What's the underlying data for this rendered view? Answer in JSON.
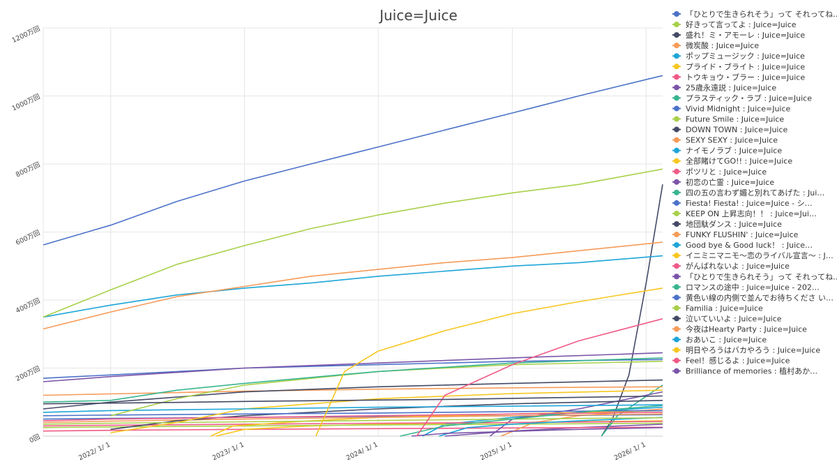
{
  "chart_data": {
    "type": "line",
    "title": "Juice=Juice",
    "xlabel": "",
    "ylabel": "",
    "x_tick_labels": [
      "2022/ 1/ 1",
      "2023/ 1/ 1",
      "2024/ 1/ 1",
      "2025/ 1/ 1",
      "2026/ 1/ 1"
    ],
    "y_tick_labels": [
      "0回",
      "200万回",
      "400万回",
      "600万回",
      "800万回",
      "1000万回",
      "1200万回"
    ],
    "ylim": [
      0,
      1200
    ],
    "y_unit": "万回",
    "xlim": [
      "2021-07-01",
      "2026-02-15"
    ],
    "grid": true,
    "legend_position": "right",
    "series": [
      {
        "name": "「ひとりで生きられそう」って それってね…",
        "color": "#4c72c9",
        "x": [
          "2021-07-01",
          "2022-01-01",
          "2022-07-01",
          "2023-01-01",
          "2023-07-01",
          "2024-01-01",
          "2024-07-01",
          "2025-01-01",
          "2025-07-01",
          "2026-02-15"
        ],
        "y": [
          562,
          620,
          690,
          750,
          800,
          850,
          900,
          950,
          1000,
          1060
        ]
      },
      {
        "name": "好きって言ってよ : Juice=Juice",
        "color": "#a8d04a",
        "x": [
          "2021-07-01",
          "2022-01-01",
          "2022-07-01",
          "2023-01-01",
          "2023-07-01",
          "2024-01-01",
          "2024-07-01",
          "2025-01-01",
          "2025-07-01",
          "2026-02-15"
        ],
        "y": [
          350,
          430,
          505,
          560,
          610,
          650,
          685,
          715,
          740,
          785
        ]
      },
      {
        "name": "盛れ！ミ・アモーレ : Juice=Juice",
        "color": "#444a66",
        "x": [
          "2021-07-01",
          "2022-01-01",
          "2022-07-01",
          "2023-01-01",
          "2023-07-01",
          "2024-01-01",
          "2024-07-01",
          "2025-01-01",
          "2025-07-01",
          "2026-02-15"
        ],
        "y": [
          95,
          97,
          99,
          102,
          104,
          106,
          108,
          111,
          114,
          118
        ]
      },
      {
        "name": "微炭酸 : Juice=Juice",
        "color": "#f59b58",
        "x": [
          "2021-07-01",
          "2022-01-01",
          "2022-07-01",
          "2023-01-01",
          "2023-07-01",
          "2024-01-01",
          "2024-07-01",
          "2025-01-01",
          "2025-07-01",
          "2026-02-15"
        ],
        "y": [
          315,
          365,
          410,
          440,
          470,
          490,
          510,
          525,
          545,
          570
        ]
      },
      {
        "name": "ポップミュージック : Juice=Juice",
        "color": "#1ea5d8",
        "x": [
          "2021-07-01",
          "2022-01-01",
          "2022-07-01",
          "2023-01-01",
          "2023-07-01",
          "2024-01-01",
          "2024-07-01",
          "2025-01-01",
          "2025-07-01",
          "2026-02-15"
        ],
        "y": [
          350,
          385,
          415,
          435,
          450,
          470,
          485,
          500,
          510,
          530
        ]
      },
      {
        "name": "プライド・ブライト : Juice=Juice",
        "color": "#f7c720",
        "x": [
          "2023-07-15",
          "2023-10-01",
          "2024-01-01",
          "2024-07-01",
          "2025-01-01",
          "2025-07-01",
          "2026-02-15"
        ],
        "y": [
          0,
          190,
          250,
          310,
          360,
          395,
          435
        ]
      },
      {
        "name": "トウキョウ・ブラー : Juice=Juice",
        "color": "#ef5b87",
        "x": [
          "2024-04-15",
          "2024-07-01",
          "2025-01-01",
          "2025-07-01",
          "2026-02-15"
        ],
        "y": [
          0,
          120,
          210,
          280,
          345
        ]
      },
      {
        "name": "25歳永遠説 : Juice=Juice",
        "color": "#7a55a8",
        "x": [
          "2021-07-01",
          "2022-01-01",
          "2023-01-01",
          "2024-01-01",
          "2025-01-01",
          "2026-02-15"
        ],
        "y": [
          160,
          175,
          200,
          215,
          230,
          245
        ]
      },
      {
        "name": "プラスティック・ラブ : Juice=Juice",
        "color": "#38b58f",
        "x": [
          "2021-07-01",
          "2022-01-01",
          "2022-07-01",
          "2023-01-01",
          "2024-01-01",
          "2025-01-01",
          "2026-02-15"
        ],
        "y": [
          100,
          105,
          135,
          155,
          190,
          215,
          230
        ]
      },
      {
        "name": "Vivid Midnight : Juice=Juice",
        "color": "#4c72c9",
        "x": [
          "2021-07-01",
          "2022-01-01",
          "2023-01-01",
          "2024-01-01",
          "2025-01-01",
          "2026-02-15"
        ],
        "y": [
          170,
          180,
          200,
          210,
          220,
          225
        ]
      },
      {
        "name": "Future Smile : Juice=Juice",
        "color": "#a8d04a",
        "x": [
          "2022-01-01",
          "2022-07-01",
          "2023-01-01",
          "2024-01-01",
          "2025-01-01",
          "2026-02-15"
        ],
        "y": [
          60,
          110,
          150,
          190,
          210,
          220
        ]
      },
      {
        "name": "DOWN TOWN : Juice=Juice",
        "color": "#444a66",
        "x": [
          "2021-07-01",
          "2022-01-01",
          "2023-01-01",
          "2024-01-01",
          "2025-01-01",
          "2026-02-15"
        ],
        "y": [
          80,
          100,
          130,
          145,
          155,
          165
        ]
      },
      {
        "name": "SEXY SEXY : Juice=Juice",
        "color": "#f59b58",
        "x": [
          "2021-07-01",
          "2022-01-01",
          "2023-01-01",
          "2024-01-01",
          "2025-01-01",
          "2026-02-15"
        ],
        "y": [
          120,
          124,
          132,
          138,
          142,
          145
        ]
      },
      {
        "name": "ナイモノラブ : Juice=Juice",
        "color": "#1ea5d8",
        "x": [
          "2021-07-01",
          "2022-01-01",
          "2023-01-01",
          "2024-01-01",
          "2025-01-01",
          "2026-02-15"
        ],
        "y": [
          70,
          75,
          80,
          85,
          88,
          92
        ]
      },
      {
        "name": "全部賭けてGO!! : Juice=Juice",
        "color": "#f7c720",
        "x": [
          "2022-01-01",
          "2022-07-01",
          "2023-01-01",
          "2024-01-01",
          "2025-01-01",
          "2026-02-15"
        ],
        "y": [
          10,
          40,
          80,
          110,
          125,
          135
        ]
      },
      {
        "name": "ポツリと : Juice=Juice",
        "color": "#ef5b87",
        "x": [
          "2021-07-01",
          "2022-01-01",
          "2023-01-01",
          "2024-01-01",
          "2025-01-01",
          "2026-02-15"
        ],
        "y": [
          45,
          50,
          55,
          60,
          65,
          70
        ]
      },
      {
        "name": "初恋の亡霊 : Juice=Juice",
        "color": "#7a55a8",
        "x": [
          "2024-04-01",
          "2024-07-01",
          "2025-01-01",
          "2025-07-01",
          "2026-02-15"
        ],
        "y": [
          0,
          8,
          14,
          20,
          25
        ]
      },
      {
        "name": "四の五の言わず媚と別れてあげた : Jui…",
        "color": "#38b58f",
        "x": [
          "2024-03-01",
          "2024-07-01",
          "2025-01-01",
          "2025-07-01",
          "2026-02-15"
        ],
        "y": [
          0,
          30,
          50,
          70,
          90
        ]
      },
      {
        "name": "Fiesta! Fiesta! : Juice=Juice - シ…",
        "color": "#4c72c9",
        "x": [
          "2021-07-01",
          "2022-01-01",
          "2023-01-01",
          "2024-01-01",
          "2025-01-01",
          "2026-02-15"
        ],
        "y": [
          60,
          62,
          65,
          68,
          72,
          75
        ]
      },
      {
        "name": "KEEP ON 上昇志向！！ : Juice=Jui…",
        "color": "#a8d04a",
        "x": [
          "2021-07-01",
          "2022-01-01",
          "2023-01-01",
          "2024-01-01",
          "2025-01-01",
          "2026-02-15"
        ],
        "y": [
          35,
          38,
          42,
          46,
          50,
          54
        ]
      },
      {
        "name": "地団駄ダンス : Juice=Juice",
        "color": "#444a66",
        "x": [
          "2022-01-01",
          "2022-07-01",
          "2023-01-01",
          "2024-01-01",
          "2025-01-01",
          "2026-02-15"
        ],
        "y": [
          20,
          45,
          60,
          80,
          95,
          105
        ]
      },
      {
        "name": "FUNKY FLUSHIN' : Juice=Juice",
        "color": "#f59b58",
        "x": [
          "2021-07-01",
          "2022-01-01",
          "2023-01-01",
          "2024-01-01",
          "2025-01-01",
          "2026-02-15"
        ],
        "y": [
          40,
          44,
          50,
          55,
          60,
          65
        ]
      },
      {
        "name": "Good bye & Good luck！ : Juice…",
        "color": "#1ea5d8",
        "x": [
          "2024-06-15",
          "2024-09-01",
          "2025-01-01",
          "2025-07-01",
          "2026-02-15"
        ],
        "y": [
          0,
          25,
          35,
          45,
          55
        ]
      },
      {
        "name": "イニミニマニモ～恋のライバル宣言～ : J…",
        "color": "#f7c720",
        "x": [
          "2022-10-01",
          "2022-12-01",
          "2023-07-01",
          "2024-01-01",
          "2025-01-01",
          "2026-02-15"
        ],
        "y": [
          0,
          30,
          45,
          55,
          65,
          75
        ]
      },
      {
        "name": "がんばれないよ : Juice=Juice",
        "color": "#ef5b87",
        "x": [
          "2021-07-01",
          "2022-01-01",
          "2023-01-01",
          "2024-01-01",
          "2025-01-01",
          "2026-02-15"
        ],
        "y": [
          30,
          32,
          35,
          38,
          40,
          43
        ]
      },
      {
        "name": "「ひとりで生きられそう」って それってね…",
        "color": "#7a55a8",
        "x": [
          "2024-11-01",
          "2025-01-01",
          "2025-07-01",
          "2025-10-01",
          "2026-02-15"
        ],
        "y": [
          0,
          50,
          80,
          100,
          130
        ]
      },
      {
        "name": "ロマンスの途中 : Juice=Juice - 202…",
        "color": "#38b58f",
        "x": [
          "2025-09-01",
          "2025-10-15",
          "2026-02-15"
        ],
        "y": [
          0,
          60,
          150
        ]
      },
      {
        "name": "黄色い線の内側で並んでお待ちくださ い…",
        "color": "#4c72c9",
        "x": [
          "2021-07-01",
          "2022-01-01",
          "2023-01-01",
          "2024-01-01",
          "2025-01-01",
          "2026-02-15"
        ],
        "y": [
          50,
          52,
          55,
          58,
          60,
          63
        ]
      },
      {
        "name": "Familia : Juice=Juice",
        "color": "#a8d04a",
        "x": [
          "2021-07-01",
          "2022-01-01",
          "2023-01-01",
          "2024-01-01",
          "2025-01-01",
          "2026-02-15"
        ],
        "y": [
          25,
          27,
          30,
          33,
          35,
          38
        ]
      },
      {
        "name": "泣いていいよ : Juice=Juice",
        "color": "#444a66",
        "x": [
          "2025-09-01",
          "2025-10-01",
          "2025-11-15",
          "2026-01-01",
          "2026-02-15"
        ],
        "y": [
          0,
          50,
          180,
          450,
          740
        ]
      },
      {
        "name": "今夜はHearty Party : Juice=Juice",
        "color": "#f59b58",
        "x": [
          "2024-12-01",
          "2025-03-01",
          "2025-07-01",
          "2026-02-15"
        ],
        "y": [
          0,
          40,
          60,
          80
        ]
      },
      {
        "name": "おあいこ : Juice=Juice",
        "color": "#1ea5d8",
        "x": [
          "2024-05-01",
          "2024-07-01",
          "2025-01-01",
          "2025-07-01",
          "2026-02-15"
        ],
        "y": [
          0,
          35,
          55,
          70,
          85
        ]
      },
      {
        "name": "明日やろうはバカやろう : Juice=Juice",
        "color": "#f7c720",
        "x": [
          "2022-10-15",
          "2023-01-01",
          "2023-07-01",
          "2024-01-01",
          "2025-01-01",
          "2026-02-15"
        ],
        "y": [
          0,
          20,
          30,
          35,
          40,
          45
        ]
      },
      {
        "name": "Feel！感じるよ : Juice=Juice",
        "color": "#ef5b87",
        "x": [
          "2021-07-01",
          "2022-01-01",
          "2023-01-01",
          "2024-01-01",
          "2025-01-01",
          "2026-02-15"
        ],
        "y": [
          15,
          17,
          20,
          22,
          24,
          26
        ]
      },
      {
        "name": "Brilliance of memories : 植村あか…",
        "color": "#7a55a8",
        "x": [
          "2024-07-01",
          "2025-01-01",
          "2025-07-01",
          "2026-02-15"
        ],
        "y": [
          0,
          15,
          25,
          35
        ]
      }
    ]
  }
}
